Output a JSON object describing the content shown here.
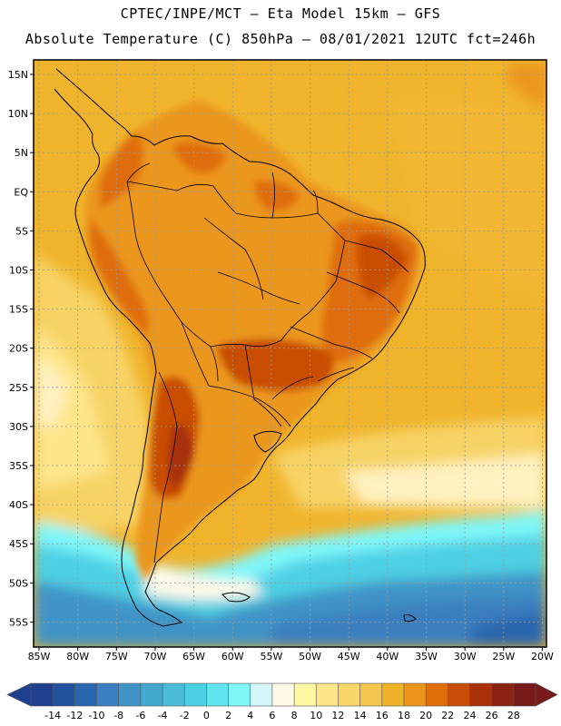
{
  "header": {
    "line1": "CPTEC/INPE/MCT –  Eta Model 15km – GFS",
    "line2": "Absolute Temperature (C) 850hPa – 08/01/2021 12UTC fct=246h"
  },
  "axes": {
    "lat_labels": [
      "15N",
      "10N",
      "5N",
      "EQ",
      "5S",
      "10S",
      "15S",
      "20S",
      "25S",
      "30S",
      "35S",
      "40S",
      "45S",
      "50S",
      "55S"
    ],
    "lon_labels": [
      "85W",
      "80W",
      "75W",
      "70W",
      "65W",
      "60W",
      "55W",
      "50W",
      "45W",
      "40W",
      "35W",
      "30W",
      "25W",
      "20W"
    ]
  },
  "colorbar": {
    "labels": [
      "-14",
      "-12",
      "-10",
      "-8",
      "-6",
      "-4",
      "-2",
      "0",
      "2",
      "4",
      "6",
      "8",
      "10",
      "12",
      "14",
      "16",
      "18",
      "20",
      "22",
      "24",
      "26",
      "28"
    ],
    "colors": [
      "#1f3f8f",
      "#24519e",
      "#2a66ae",
      "#3a7fbf",
      "#3f93c6",
      "#44a8cf",
      "#4bbcd8",
      "#4ed0e4",
      "#5fe4ee",
      "#7ff7f9",
      "#d4f6fb",
      "#fff9e8",
      "#fff7a2",
      "#fde58a",
      "#f9d66a",
      "#f3c64e",
      "#efb329",
      "#eb961b",
      "#df6d09",
      "#c94d04",
      "#a83107",
      "#8a2211",
      "#781a1a"
    ]
  }
}
